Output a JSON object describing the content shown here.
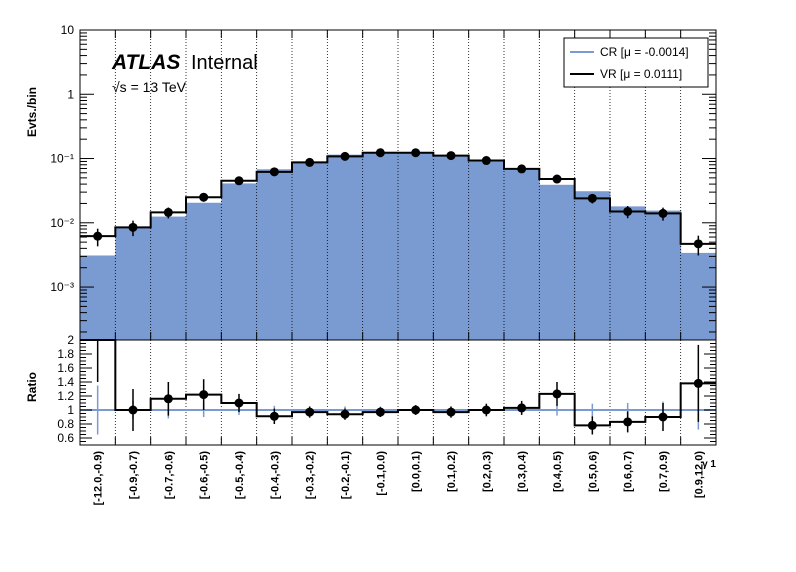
{
  "chart_data": {
    "type": "histogram",
    "branding": {
      "experiment": "ATLAS",
      "status": "Internal",
      "energy": "√s = 13 TeV"
    },
    "categories": [
      "[-12.0,-0.9)",
      "[-0.9,-0.7)",
      "[-0.7,-0.6)",
      "[-0.6,-0.5)",
      "[-0.5,-0.4)",
      "[-0.4,-0.3)",
      "[-0.3,-0.2)",
      "[-0.2,-0.1)",
      "[-0.1,0.0)",
      "[0.0,0.1)",
      "[0.1,0.2)",
      "[0.2,0.3)",
      "[0.3,0.4)",
      "[0.4,0.5)",
      "[0.5,0.6)",
      "[0.6,0.7)",
      "[0.7,0.9)",
      "[0.9,12.0)"
    ],
    "xlabel": "γ 1",
    "top_panel": {
      "ylabel": "Evts./bin",
      "yscale": "log",
      "ylim": [
        0.00015,
        10
      ],
      "y_tick_labels": [
        "10⁻³",
        "10⁻²",
        "10⁻¹",
        "1",
        "10"
      ],
      "series": [
        {
          "name": "CR [μ = -0.0014]",
          "style": "filled histogram",
          "color": "#7a9ad2",
          "values": [
            0.0031,
            0.0085,
            0.0125,
            0.0205,
            0.041,
            0.068,
            0.09,
            0.115,
            0.127,
            0.123,
            0.114,
            0.093,
            0.067,
            0.039,
            0.031,
            0.018,
            0.0155,
            0.0034
          ]
        },
        {
          "name": "VR [μ = 0.0111]",
          "style": "step histogram with points",
          "color": "#000000",
          "values": [
            0.0062,
            0.0085,
            0.0145,
            0.025,
            0.045,
            0.062,
            0.087,
            0.108,
            0.123,
            0.123,
            0.111,
            0.093,
            0.069,
            0.048,
            0.024,
            0.015,
            0.014,
            0.0047
          ],
          "errors": [
            0.0019,
            0.0023,
            0.0028,
            0.0037,
            0.0052,
            0.0062,
            0.0075,
            0.0085,
            0.0093,
            0.0093,
            0.0088,
            0.0081,
            0.0068,
            0.0058,
            0.004,
            0.0032,
            0.0032,
            0.0016
          ]
        }
      ],
      "legend_position": "top-right"
    },
    "ratio_panel": {
      "ylabel": "Ratio",
      "ylim": [
        0.5,
        2.0
      ],
      "y_ticks": [
        0.6,
        0.8,
        1,
        1.2,
        1.4,
        1.6,
        1.8,
        2
      ],
      "reference_line": 1,
      "values": [
        2.0,
        1.0,
        1.16,
        1.22,
        1.1,
        0.91,
        0.97,
        0.94,
        0.97,
        1.0,
        0.97,
        1.0,
        1.03,
        1.23,
        0.78,
        0.83,
        0.9,
        1.38
      ],
      "errors": [
        0.6,
        0.3,
        0.24,
        0.22,
        0.13,
        0.11,
        0.08,
        0.08,
        0.07,
        0.07,
        0.08,
        0.09,
        0.1,
        0.17,
        0.13,
        0.15,
        0.2,
        0.55
      ],
      "cr_errors": [
        0.35,
        0.13,
        0.12,
        0.1,
        0.07,
        0.06,
        0.05,
        0.05,
        0.05,
        0.05,
        0.05,
        0.05,
        0.06,
        0.08,
        0.09,
        0.1,
        0.12,
        0.28
      ]
    }
  }
}
